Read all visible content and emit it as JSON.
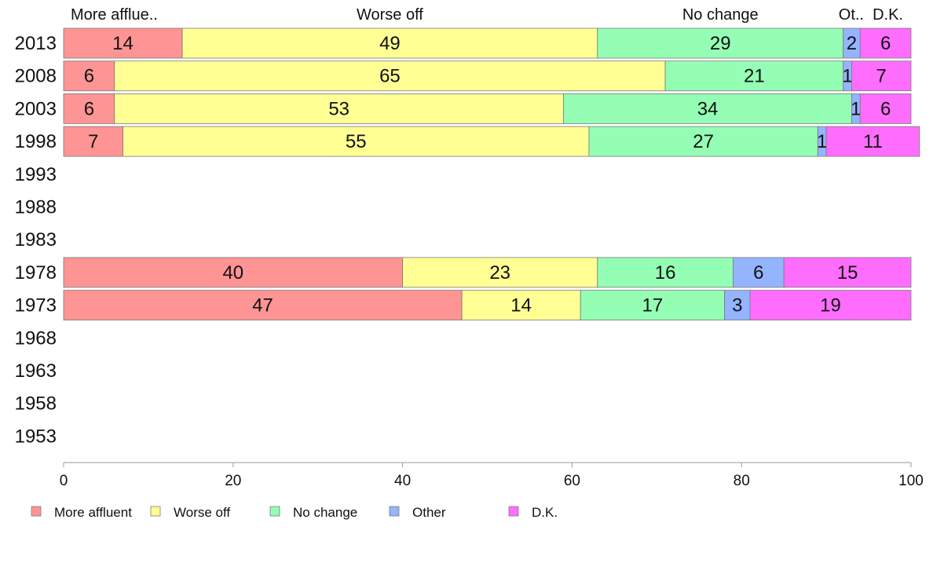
{
  "chart_data": {
    "type": "bar",
    "orientation": "horizontal",
    "stacked": true,
    "categories": [
      "2013",
      "2008",
      "2003",
      "1998",
      "1993",
      "1988",
      "1983",
      "1978",
      "1973",
      "1968",
      "1963",
      "1958",
      "1953"
    ],
    "series": [
      {
        "name": "More affluent",
        "color": "#ff9494",
        "values": [
          14,
          6,
          6,
          7,
          null,
          null,
          null,
          40,
          47,
          null,
          null,
          null,
          null
        ]
      },
      {
        "name": "Worse off",
        "color": "#ffff94",
        "values": [
          49,
          65,
          53,
          55,
          null,
          null,
          null,
          23,
          14,
          null,
          null,
          null,
          null
        ]
      },
      {
        "name": "No change",
        "color": "#94ffb4",
        "values": [
          29,
          21,
          34,
          27,
          null,
          null,
          null,
          16,
          17,
          null,
          null,
          null,
          null
        ]
      },
      {
        "name": "Other",
        "color": "#94b4ff",
        "values": [
          2,
          1,
          1,
          1,
          null,
          null,
          null,
          6,
          3,
          null,
          null,
          null,
          null
        ]
      },
      {
        "name": "D.K.",
        "color": "#ff6dff",
        "values": [
          6,
          7,
          6,
          11,
          null,
          null,
          null,
          15,
          19,
          null,
          null,
          null,
          null
        ]
      }
    ],
    "column_headers": [
      "More afflue..",
      "Worse off",
      "No change",
      "Ot..",
      "D.K."
    ],
    "xlim": [
      0,
      100
    ],
    "xticks": [
      0,
      20,
      40,
      60,
      80,
      100
    ],
    "legend_position": "bottom-left",
    "grid": false
  }
}
